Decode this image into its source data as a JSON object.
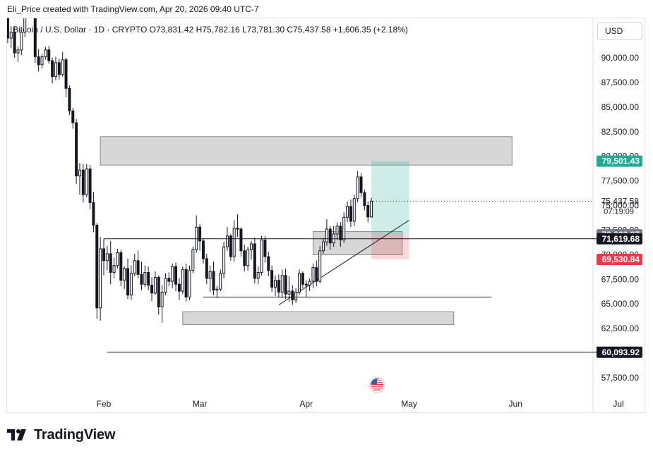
{
  "header": {
    "credit": "Eli_Price created with TradingView.com, Apr 20, 2026 09:40 UTC-7",
    "legend": "Bitcoin / U.S. Dollar · 1D · CRYPTO  O73,831.42  H75,782.16  L73,781.30  C75,437.58  +1,606.35 (+2.18%)",
    "currency_button": "USD"
  },
  "branding": {
    "logo_icon": "tradingview-logo-icon",
    "logo_text": "TradingView"
  },
  "colors": {
    "up": "#131722",
    "down": "#131722",
    "zone": "#d0d0d0",
    "profit": "#22ab94",
    "loss": "#f23645",
    "badge_dark": "#131722",
    "badge_gray": "#787b86"
  },
  "chart_data": {
    "type": "candlestick",
    "symbol": "Bitcoin / U.S. Dollar",
    "interval": "1D",
    "exchange": "CRYPTO",
    "ohlc_last": {
      "open": 73831.42,
      "high": 75782.16,
      "low": 73781.3,
      "close": 75437.58,
      "change": 1606.35,
      "change_pct": 2.18
    },
    "ylim": [
      56000,
      96000
    ],
    "y_ticks": [
      "90,000.00",
      "87,500.00",
      "85,000.00",
      "82,500.00",
      "80,000.00",
      "77,500.00",
      "75,000.00",
      "72,500.00",
      "70,000.00",
      "67,500.00",
      "65,000.00",
      "62,500.00",
      "57,500.00"
    ],
    "x_range": [
      "2026-01-06",
      "2026-07-14"
    ],
    "x_ticks": [
      {
        "label": "Feb",
        "date": "2026-02-01"
      },
      {
        "label": "Mar",
        "date": "2026-03-01"
      },
      {
        "label": "Apr",
        "date": "2026-04-01"
      },
      {
        "label": "May",
        "date": "2026-05-01"
      },
      {
        "label": "Jun",
        "date": "2026-06-01"
      },
      {
        "label": "Jul",
        "date": "2026-07-01"
      }
    ],
    "price_badges": [
      {
        "label": "79,501.43",
        "value": 79501.43,
        "style": "profit"
      },
      {
        "label": "72,023.87",
        "value": 72023.87,
        "style": "gray"
      },
      {
        "label": "71,619.68",
        "value": 71619.68,
        "style": "dark"
      },
      {
        "label": "69,530.84",
        "value": 69530.84,
        "style": "loss"
      },
      {
        "label": "60,093.92",
        "value": 60093.92,
        "style": "dark"
      }
    ],
    "last_price": {
      "label": "75,437.58",
      "countdown": "07:19:09",
      "value": 75437.58
    },
    "zones": [
      {
        "from": "2026-01-31",
        "to": "2026-05-31",
        "top": 82000,
        "bottom": 79100
      },
      {
        "from": "2026-04-03",
        "to": "2026-04-29",
        "top": 72350,
        "bottom": 70000
      },
      {
        "from": "2026-02-24",
        "to": "2026-05-14",
        "top": 64200,
        "bottom": 62900
      }
    ],
    "lines": [
      {
        "from": "2026-02-01",
        "to": "2026-07-14",
        "value": 71619.68
      },
      {
        "from": "2026-03-02",
        "to": "2026-05-25",
        "value": 65700
      },
      {
        "from": "2026-02-02",
        "to": "2026-07-14",
        "value": 60093.92
      }
    ],
    "trendline": {
      "from": {
        "date": "2026-03-24",
        "value": 64900
      },
      "to": {
        "date": "2026-05-01",
        "value": 73500
      }
    },
    "position": {
      "from": "2026-04-20",
      "to": "2026-05-01",
      "entry": 72023.87,
      "target": 79501.43,
      "stop": 69530.84
    },
    "event_marker": {
      "date": "2026-04-20",
      "icon": "us-flag-icon"
    },
    "candles": [
      [
        89000,
        90200,
        88200,
        89800
      ],
      [
        89800,
        92600,
        89400,
        91900
      ],
      [
        91900,
        94200,
        91000,
        93200
      ],
      [
        93200,
        95400,
        92100,
        93800
      ],
      [
        93800,
        94800,
        90800,
        91300
      ],
      [
        91300,
        92300,
        90300,
        92000
      ],
      [
        92000,
        95400,
        91700,
        95100
      ],
      [
        95100,
        97000,
        94200,
        95000
      ],
      [
        95000,
        95800,
        91500,
        92000
      ],
      [
        92000,
        93200,
        91000,
        92600
      ],
      [
        92600,
        93200,
        90000,
        90500
      ],
      [
        90500,
        91100,
        89600,
        90800
      ],
      [
        90800,
        92900,
        90300,
        92600
      ],
      [
        92600,
        95600,
        92100,
        95300
      ],
      [
        95300,
        97100,
        94300,
        96200
      ],
      [
        96200,
        96800,
        94000,
        94600
      ],
      [
        94600,
        95100,
        89500,
        90100
      ],
      [
        90100,
        90900,
        88600,
        89300
      ],
      [
        89300,
        90400,
        88900,
        90100
      ],
      [
        90100,
        91100,
        89800,
        90800
      ],
      [
        90800,
        91200,
        89400,
        89700
      ],
      [
        89700,
        90000,
        87400,
        88100
      ],
      [
        88100,
        90100,
        87700,
        89500
      ],
      [
        89500,
        89900,
        87800,
        88300
      ],
      [
        88300,
        90600,
        88100,
        89800
      ],
      [
        89800,
        90000,
        86000,
        86900
      ],
      [
        86900,
        87200,
        84200,
        84600
      ],
      [
        84600,
        84900,
        82800,
        83400
      ],
      [
        83400,
        83800,
        77200,
        78000
      ],
      [
        78000,
        79300,
        76100,
        78600
      ],
      [
        78600,
        79200,
        75300,
        76100
      ],
      [
        76100,
        79200,
        75800,
        78700
      ],
      [
        78700,
        79100,
        74600,
        75300
      ],
      [
        75300,
        76400,
        72300,
        73000
      ],
      [
        73000,
        73200,
        63500,
        64600
      ],
      [
        64600,
        71800,
        63300,
        70600
      ],
      [
        70600,
        71600,
        67900,
        69400
      ],
      [
        69400,
        70900,
        68400,
        70100
      ],
      [
        70100,
        71400,
        67000,
        68200
      ],
      [
        68200,
        69700,
        67600,
        68900
      ],
      [
        68900,
        70600,
        68600,
        70200
      ],
      [
        70200,
        70500,
        66800,
        67400
      ],
      [
        67400,
        68800,
        66500,
        68600
      ],
      [
        68600,
        69600,
        65500,
        65900
      ],
      [
        65900,
        68900,
        65400,
        68100
      ],
      [
        68100,
        70100,
        67800,
        69400
      ],
      [
        69400,
        70400,
        67600,
        68000
      ],
      [
        68000,
        69300,
        66400,
        67000
      ],
      [
        67000,
        68900,
        66700,
        68200
      ],
      [
        68200,
        68800,
        66400,
        66900
      ],
      [
        66900,
        67700,
        65300,
        66100
      ],
      [
        66100,
        68300,
        65900,
        67700
      ],
      [
        67700,
        67900,
        63900,
        64700
      ],
      [
        64700,
        66900,
        63100,
        66200
      ],
      [
        66200,
        68100,
        65900,
        67600
      ],
      [
        67600,
        68200,
        66800,
        67300
      ],
      [
        67300,
        69100,
        66600,
        68800
      ],
      [
        68800,
        69200,
        66300,
        67000
      ],
      [
        67000,
        67600,
        65400,
        66300
      ],
      [
        66300,
        68800,
        66000,
        68500
      ],
      [
        68500,
        69100,
        65200,
        65700
      ],
      [
        65700,
        68900,
        65400,
        68400
      ],
      [
        68400,
        70800,
        68100,
        70500
      ],
      [
        70500,
        74000,
        70200,
        72800
      ],
      [
        72800,
        73100,
        70400,
        71400
      ],
      [
        71400,
        71700,
        69100,
        69600
      ],
      [
        69600,
        70100,
        67000,
        67600
      ],
      [
        67600,
        68900,
        66200,
        68300
      ],
      [
        68300,
        69300,
        65900,
        66400
      ],
      [
        66400,
        66800,
        65600,
        66500
      ],
      [
        66500,
        68500,
        66300,
        68100
      ],
      [
        68100,
        71300,
        67600,
        70800
      ],
      [
        70800,
        72800,
        70400,
        71900
      ],
      [
        71900,
        72100,
        69400,
        69800
      ],
      [
        69800,
        73500,
        69300,
        72700
      ],
      [
        72700,
        74100,
        71800,
        72600
      ],
      [
        72600,
        72800,
        69800,
        70400
      ],
      [
        70400,
        71000,
        68300,
        68900
      ],
      [
        68900,
        70800,
        68400,
        70500
      ],
      [
        70500,
        71400,
        69500,
        71100
      ],
      [
        71100,
        71700,
        67100,
        67600
      ],
      [
        67600,
        68800,
        67000,
        68200
      ],
      [
        68200,
        71900,
        67900,
        71500
      ],
      [
        71500,
        71900,
        69200,
        69800
      ],
      [
        69800,
        70300,
        67800,
        68400
      ],
      [
        68400,
        68900,
        66200,
        66700
      ],
      [
        66700,
        67900,
        65800,
        67400
      ],
      [
        67400,
        68000,
        65700,
        66200
      ],
      [
        66200,
        68500,
        65600,
        67900
      ],
      [
        67900,
        68600,
        65500,
        66000
      ],
      [
        66000,
        67800,
        65200,
        66300
      ],
      [
        66300,
        66900,
        64900,
        65400
      ],
      [
        65400,
        66600,
        65100,
        66200
      ],
      [
        66200,
        68500,
        65900,
        68100
      ],
      [
        68100,
        68300,
        66600,
        67000
      ],
      [
        67000,
        67400,
        65700,
        66900
      ],
      [
        66900,
        67600,
        66300,
        67300
      ],
      [
        67300,
        69100,
        66600,
        68700
      ],
      [
        68700,
        69400,
        66800,
        67300
      ],
      [
        67300,
        70900,
        67100,
        70400
      ],
      [
        70400,
        71700,
        70100,
        71300
      ],
      [
        71300,
        73600,
        70900,
        72600
      ],
      [
        72600,
        72900,
        70500,
        71200
      ],
      [
        71200,
        72900,
        70800,
        72100
      ],
      [
        72100,
        73300,
        71500,
        72900
      ],
      [
        72900,
        73300,
        70800,
        71500
      ],
      [
        71500,
        74300,
        71200,
        73800
      ],
      [
        73800,
        75400,
        73300,
        74900
      ],
      [
        74900,
        75600,
        72800,
        73400
      ],
      [
        73400,
        76100,
        72900,
        75700
      ],
      [
        75700,
        78500,
        75300,
        77900
      ],
      [
        77900,
        78300,
        75800,
        76300
      ],
      [
        76300,
        76600,
        74500,
        75000
      ],
      [
        75000,
        75400,
        73300,
        73831.42
      ],
      [
        73831.42,
        75782.16,
        73781.3,
        75437.58
      ]
    ]
  }
}
